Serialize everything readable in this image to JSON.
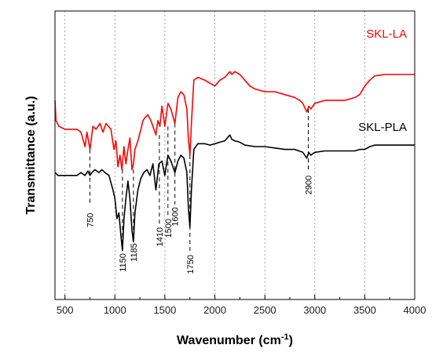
{
  "chart_data": {
    "type": "line",
    "title": "",
    "xlabel": "Wavenumber (cm-1)",
    "xlabel_parts": {
      "main": "Wavenumber (cm",
      "sup": "-1",
      "close": ")"
    },
    "ylabel": "Transmittance (a.u.)",
    "xlim": [
      400,
      4000
    ],
    "ylim": [
      0,
      1
    ],
    "x_ticks": [
      "500",
      "1000",
      "1500",
      "2000",
      "2500",
      "3000",
      "3500",
      "4000"
    ],
    "x_tick_values": [
      500,
      1000,
      1500,
      2000,
      2500,
      3000,
      3500,
      4000
    ],
    "grid": "vertical dotted",
    "y_units": "arbitrary (offset traces)",
    "series": [
      {
        "name": "SKL-LA",
        "color": "#ff0000",
        "points": [
          [
            400,
            0.69
          ],
          [
            410,
            0.62
          ],
          [
            440,
            0.6
          ],
          [
            500,
            0.59
          ],
          [
            560,
            0.59
          ],
          [
            620,
            0.59
          ],
          [
            660,
            0.58
          ],
          [
            700,
            0.53
          ],
          [
            720,
            0.58
          ],
          [
            750,
            0.52
          ],
          [
            780,
            0.6
          ],
          [
            810,
            0.59
          ],
          [
            850,
            0.61
          ],
          [
            880,
            0.58
          ],
          [
            910,
            0.61
          ],
          [
            960,
            0.59
          ],
          [
            990,
            0.52
          ],
          [
            1010,
            0.55
          ],
          [
            1030,
            0.46
          ],
          [
            1050,
            0.5
          ],
          [
            1070,
            0.45
          ],
          [
            1090,
            0.53
          ],
          [
            1110,
            0.47
          ],
          [
            1130,
            0.52
          ],
          [
            1150,
            0.56
          ],
          [
            1170,
            0.45
          ],
          [
            1185,
            0.47
          ],
          [
            1200,
            0.52
          ],
          [
            1230,
            0.55
          ],
          [
            1260,
            0.59
          ],
          [
            1280,
            0.62
          ],
          [
            1300,
            0.63
          ],
          [
            1330,
            0.64
          ],
          [
            1360,
            0.62
          ],
          [
            1380,
            0.6
          ],
          [
            1410,
            0.57
          ],
          [
            1430,
            0.62
          ],
          [
            1450,
            0.6
          ],
          [
            1470,
            0.67
          ],
          [
            1500,
            0.6
          ],
          [
            1530,
            0.68
          ],
          [
            1560,
            0.66
          ],
          [
            1600,
            0.61
          ],
          [
            1630,
            0.7
          ],
          [
            1660,
            0.72
          ],
          [
            1690,
            0.71
          ],
          [
            1720,
            0.66
          ],
          [
            1735,
            0.56
          ],
          [
            1750,
            0.5
          ],
          [
            1765,
            0.61
          ],
          [
            1790,
            0.76
          ],
          [
            1830,
            0.77
          ],
          [
            1900,
            0.76
          ],
          [
            1950,
            0.75
          ],
          [
            2000,
            0.74
          ],
          [
            2050,
            0.76
          ],
          [
            2100,
            0.77
          ],
          [
            2150,
            0.79
          ],
          [
            2170,
            0.78
          ],
          [
            2200,
            0.79
          ],
          [
            2250,
            0.78
          ],
          [
            2300,
            0.76
          ],
          [
            2350,
            0.74
          ],
          [
            2400,
            0.73
          ],
          [
            2500,
            0.72
          ],
          [
            2600,
            0.72
          ],
          [
            2700,
            0.71
          ],
          [
            2800,
            0.7
          ],
          [
            2850,
            0.69
          ],
          [
            2880,
            0.68
          ],
          [
            2920,
            0.65
          ],
          [
            2940,
            0.67
          ],
          [
            2960,
            0.66
          ],
          [
            3000,
            0.68
          ],
          [
            3100,
            0.69
          ],
          [
            3200,
            0.69
          ],
          [
            3300,
            0.69
          ],
          [
            3400,
            0.7
          ],
          [
            3450,
            0.71
          ],
          [
            3500,
            0.74
          ],
          [
            3550,
            0.76
          ],
          [
            3600,
            0.775
          ],
          [
            3700,
            0.78
          ],
          [
            3800,
            0.78
          ],
          [
            3900,
            0.78
          ],
          [
            4000,
            0.78
          ]
        ]
      },
      {
        "name": "SKL-PLA",
        "color": "#000000",
        "points": [
          [
            400,
            0.44
          ],
          [
            430,
            0.43
          ],
          [
            500,
            0.43
          ],
          [
            560,
            0.43
          ],
          [
            620,
            0.43
          ],
          [
            660,
            0.44
          ],
          [
            700,
            0.43
          ],
          [
            730,
            0.445
          ],
          [
            750,
            0.43
          ],
          [
            770,
            0.44
          ],
          [
            800,
            0.45
          ],
          [
            840,
            0.44
          ],
          [
            870,
            0.45
          ],
          [
            900,
            0.44
          ],
          [
            940,
            0.43
          ],
          [
            980,
            0.38
          ],
          [
            1000,
            0.35
          ],
          [
            1020,
            0.28
          ],
          [
            1040,
            0.3
          ],
          [
            1060,
            0.22
          ],
          [
            1075,
            0.17
          ],
          [
            1090,
            0.28
          ],
          [
            1110,
            0.35
          ],
          [
            1130,
            0.41
          ],
          [
            1150,
            0.35
          ],
          [
            1170,
            0.24
          ],
          [
            1185,
            0.2
          ],
          [
            1200,
            0.3
          ],
          [
            1230,
            0.38
          ],
          [
            1260,
            0.42
          ],
          [
            1290,
            0.44
          ],
          [
            1320,
            0.45
          ],
          [
            1350,
            0.43
          ],
          [
            1380,
            0.47
          ],
          [
            1410,
            0.38
          ],
          [
            1440,
            0.47
          ],
          [
            1470,
            0.48
          ],
          [
            1500,
            0.43
          ],
          [
            1530,
            0.5
          ],
          [
            1560,
            0.48
          ],
          [
            1600,
            0.44
          ],
          [
            1630,
            0.48
          ],
          [
            1660,
            0.5
          ],
          [
            1690,
            0.49
          ],
          [
            1720,
            0.44
          ],
          [
            1735,
            0.32
          ],
          [
            1750,
            0.25
          ],
          [
            1765,
            0.38
          ],
          [
            1790,
            0.52
          ],
          [
            1830,
            0.54
          ],
          [
            1900,
            0.54
          ],
          [
            1950,
            0.535
          ],
          [
            2000,
            0.54
          ],
          [
            2050,
            0.545
          ],
          [
            2100,
            0.55
          ],
          [
            2150,
            0.57
          ],
          [
            2170,
            0.555
          ],
          [
            2200,
            0.55
          ],
          [
            2250,
            0.545
          ],
          [
            2300,
            0.535
          ],
          [
            2400,
            0.53
          ],
          [
            2500,
            0.53
          ],
          [
            2600,
            0.525
          ],
          [
            2700,
            0.52
          ],
          [
            2800,
            0.52
          ],
          [
            2880,
            0.51
          ],
          [
            2920,
            0.49
          ],
          [
            2940,
            0.51
          ],
          [
            2960,
            0.5
          ],
          [
            3000,
            0.51
          ],
          [
            3100,
            0.515
          ],
          [
            3200,
            0.515
          ],
          [
            3300,
            0.515
          ],
          [
            3400,
            0.515
          ],
          [
            3450,
            0.52
          ],
          [
            3500,
            0.52
          ],
          [
            3550,
            0.53
          ],
          [
            3600,
            0.535
          ],
          [
            3700,
            0.535
          ],
          [
            3800,
            0.535
          ],
          [
            3900,
            0.535
          ],
          [
            4000,
            0.535
          ]
        ]
      }
    ],
    "peak_annotations": [
      {
        "label": "750",
        "x": 750,
        "from": 0.52,
        "to": 0.33,
        "label_y": 0.3,
        "anchor": "end"
      },
      {
        "label": "1150",
        "x": 1075,
        "from": 0.45,
        "to": 0.17,
        "label_y": 0.16,
        "anchor": "end"
      },
      {
        "label": "1185",
        "x": 1185,
        "from": 0.45,
        "to": 0.2,
        "label_y": 0.195,
        "anchor": "end"
      },
      {
        "label": "1410",
        "x": 1445,
        "from": 0.57,
        "to": 0.26,
        "label_y": 0.25,
        "anchor": "end"
      },
      {
        "label": "1500",
        "x": 1530,
        "from": 0.6,
        "to": 0.29,
        "label_y": 0.28,
        "anchor": "end"
      },
      {
        "label": "1600",
        "x": 1600,
        "from": 0.61,
        "to": 0.33,
        "label_y": 0.32,
        "anchor": "end"
      },
      {
        "label": "1750",
        "x": 1750,
        "from": 0.5,
        "to": 0.16,
        "label_y": 0.155,
        "anchor": "end"
      },
      {
        "label": "2900",
        "x": 2935,
        "from": 0.66,
        "to": 0.44,
        "label_y": 0.43,
        "anchor": "end"
      }
    ]
  }
}
